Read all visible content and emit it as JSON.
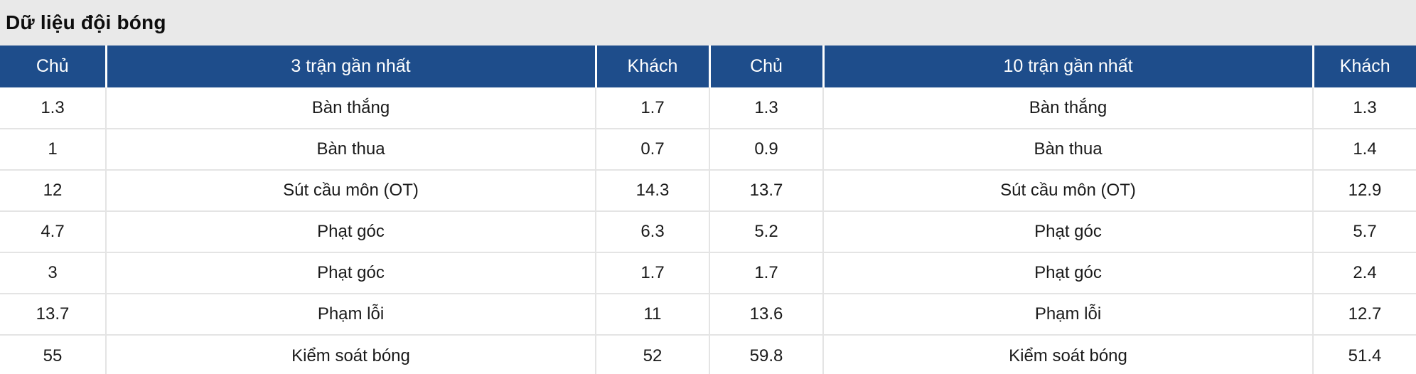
{
  "title": "Dữ liệu đội bóng",
  "colors": {
    "header_bg": "#1e4d8b",
    "header_text": "#ffffff",
    "title_bg": "#e9e9e9",
    "divider": "#e4e4e4",
    "text": "#1a1a1a",
    "row_bg": "#ffffff"
  },
  "table": {
    "headers": [
      "Chủ",
      "3 trận gần nhất",
      "Khách",
      "Chủ",
      "10 trận gần nhất",
      "Khách"
    ],
    "rows": [
      [
        "1.3",
        "Bàn thắng",
        "1.7",
        "1.3",
        "Bàn thắng",
        "1.3"
      ],
      [
        "1",
        "Bàn thua",
        "0.7",
        "0.9",
        "Bàn thua",
        "1.4"
      ],
      [
        "12",
        "Sút cầu môn (OT)",
        "14.3",
        "13.7",
        "Sút cầu môn (OT)",
        "12.9"
      ],
      [
        "4.7",
        "Phạt góc",
        "6.3",
        "5.2",
        "Phạt góc",
        "5.7"
      ],
      [
        "3",
        "Phạt góc",
        "1.7",
        "1.7",
        "Phạt góc",
        "2.4"
      ],
      [
        "13.7",
        "Phạm lỗi",
        "11",
        "13.6",
        "Phạm lỗi",
        "12.7"
      ],
      [
        "55",
        "Kiểm soát bóng",
        "52",
        "59.8",
        "Kiểm soát bóng",
        "51.4"
      ]
    ]
  }
}
